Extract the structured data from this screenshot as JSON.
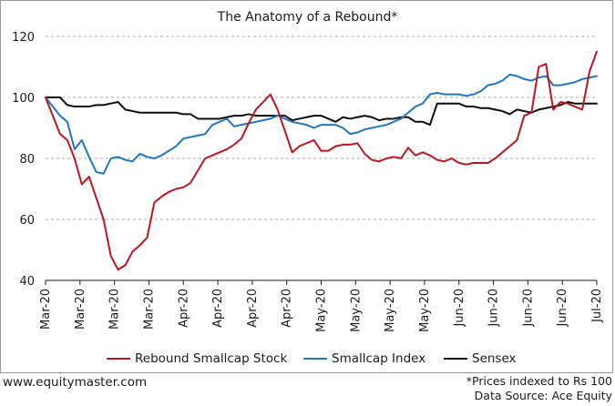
{
  "chart_data": {
    "type": "line",
    "title": "The Anatomy of a Rebound*",
    "xlabel": "",
    "ylabel": "",
    "ylim": [
      40,
      120
    ],
    "yticks": [
      40,
      60,
      80,
      100,
      120
    ],
    "x_tick_labels": [
      "Mar-20",
      "Mar-20",
      "Mar-20",
      "Mar-20",
      "Apr-20",
      "Apr-20",
      "Apr-20",
      "Apr-20",
      "May-20",
      "May-20",
      "May-20",
      "May-20",
      "Jun-20",
      "Jun-20",
      "Jun-20",
      "Jun-20",
      "Jul-20"
    ],
    "grid": "horizontal",
    "legend": "bottom",
    "x_count": 77,
    "series": [
      {
        "name": "Rebound Smallcap Stock",
        "color": "#c0141e",
        "values": [
          100,
          94,
          88,
          86,
          80,
          71.5,
          74,
          67,
          60,
          48,
          43.5,
          45,
          49.5,
          51.5,
          54,
          65.5,
          67.5,
          69,
          70,
          70.5,
          72,
          76,
          80,
          81,
          82,
          83,
          84.5,
          86.5,
          91.5,
          96,
          98.5,
          101,
          96,
          89,
          82,
          84,
          85,
          86,
          82.5,
          82.5,
          84,
          84.5,
          84.5,
          85,
          81.5,
          79.5,
          79,
          80,
          80.5,
          80,
          83.5,
          81,
          82,
          81,
          79.5,
          79,
          80,
          78.5,
          78,
          78.5,
          78.5,
          78.5,
          80,
          82,
          84,
          86,
          94,
          95,
          110,
          111,
          96,
          98.5,
          98,
          97,
          96,
          108.5,
          115
        ]
      },
      {
        "name": "Smallcap Index",
        "color": "#1f77c4",
        "values": [
          100,
          97,
          94,
          92,
          83,
          86,
          80.5,
          75.5,
          75,
          80,
          80.5,
          79.5,
          79,
          81.5,
          80.5,
          80,
          81,
          82.5,
          84,
          86.5,
          87,
          87.5,
          88,
          91,
          92,
          93,
          90.5,
          91,
          91.5,
          92,
          92.5,
          93,
          94,
          93,
          92,
          91.5,
          91,
          90,
          91,
          91,
          91,
          90,
          88,
          88.5,
          89.5,
          90,
          90.5,
          91,
          92,
          93,
          95,
          97,
          98,
          101,
          101.5,
          101,
          101,
          101,
          100.5,
          101,
          102,
          104,
          104.5,
          105.5,
          107.5,
          107,
          106,
          105.5,
          106.5,
          107,
          104,
          104,
          104.5,
          105,
          106,
          106.5,
          107
        ]
      },
      {
        "name": "Sensex",
        "color": "#0d0d0d",
        "values": [
          100,
          100,
          100,
          97.5,
          97,
          97,
          97,
          97.5,
          97.5,
          98,
          98.5,
          96,
          95.5,
          95,
          95,
          95,
          95,
          95,
          95,
          94.5,
          94.5,
          93,
          93,
          93,
          93,
          93.5,
          94,
          94,
          94.5,
          94,
          94,
          94,
          94,
          94,
          92.5,
          93,
          93.5,
          94,
          94,
          93,
          92,
          93.5,
          93,
          93.5,
          94,
          93.5,
          92.5,
          93,
          93,
          93.5,
          93.5,
          92,
          92,
          91,
          98,
          98,
          98,
          98,
          97,
          97,
          96.5,
          96.5,
          96,
          95.5,
          94.5,
          96,
          95.5,
          95,
          96,
          96.5,
          97,
          97.5,
          98.5,
          98,
          98,
          98,
          98
        ]
      }
    ]
  },
  "footer": {
    "left": "www.equitymaster.com",
    "note1": "*Prices indexed to Rs 100",
    "note2": "Data Source: Ace Equity"
  }
}
